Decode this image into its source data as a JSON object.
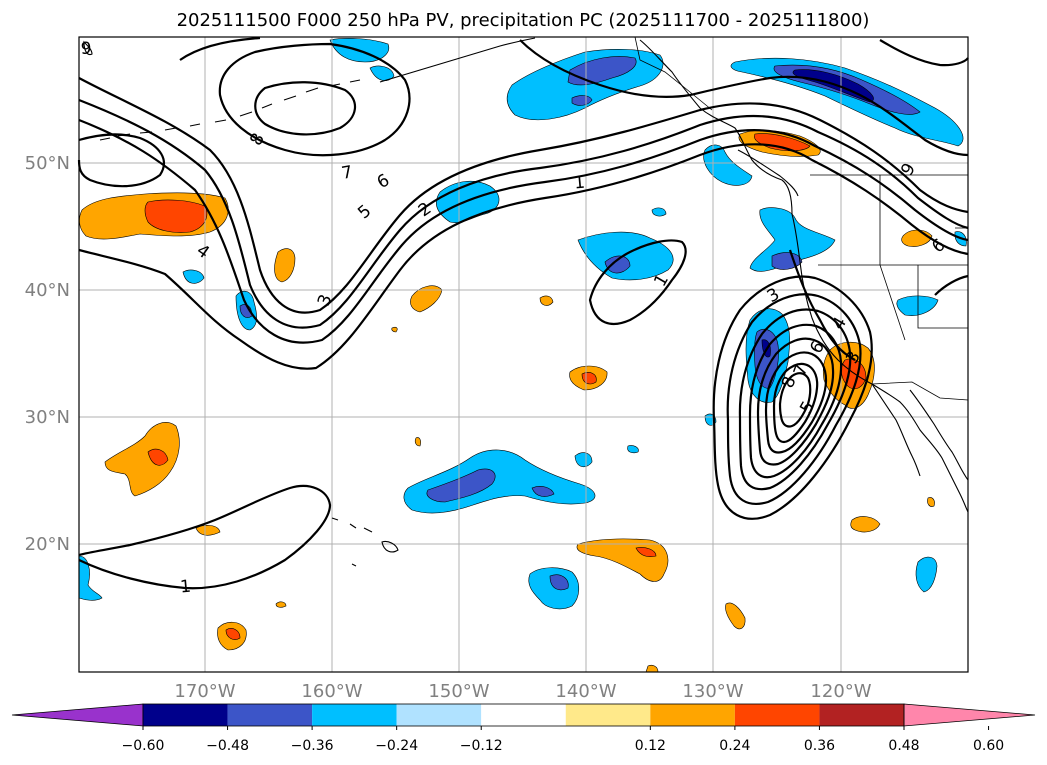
{
  "title": "2025111500 F000 250 hPa PV, precipitation PC (2025111700 - 2025111800)",
  "lat_labels": [
    "50°N",
    "40°N",
    "30°N",
    "20°N"
  ],
  "lon_labels": [
    "170°W",
    "160°W",
    "150°W",
    "140°W",
    "130°W",
    "120°W"
  ],
  "contour_labels": [
    "9",
    "8",
    "7",
    "6",
    "5",
    "4",
    "3",
    "2",
    "1",
    "1",
    "1",
    "3",
    "4",
    "6",
    "8",
    "9",
    "7",
    "5",
    "3",
    "6"
  ],
  "colorbar": {
    "ticks": [
      "−0.60",
      "−0.48",
      "−0.36",
      "−0.24",
      "−0.12",
      "0.12",
      "0.24",
      "0.36",
      "0.48",
      "0.60"
    ],
    "colors": [
      "#9932cc",
      "#00008b",
      "#3c55c8",
      "#00bfff",
      "#b0e2ff",
      "#ffffff",
      "#ffe98a",
      "#ffa500",
      "#ff4500",
      "#b22222",
      "#ff86ab"
    ]
  },
  "map": {
    "extent_lon": [
      -180,
      -110
    ],
    "extent_lat": [
      10,
      60
    ],
    "gridlines": {
      "lons": [
        -170,
        -160,
        -150,
        -140,
        -130,
        -120
      ],
      "lats": [
        50,
        40,
        30,
        20
      ]
    }
  }
}
